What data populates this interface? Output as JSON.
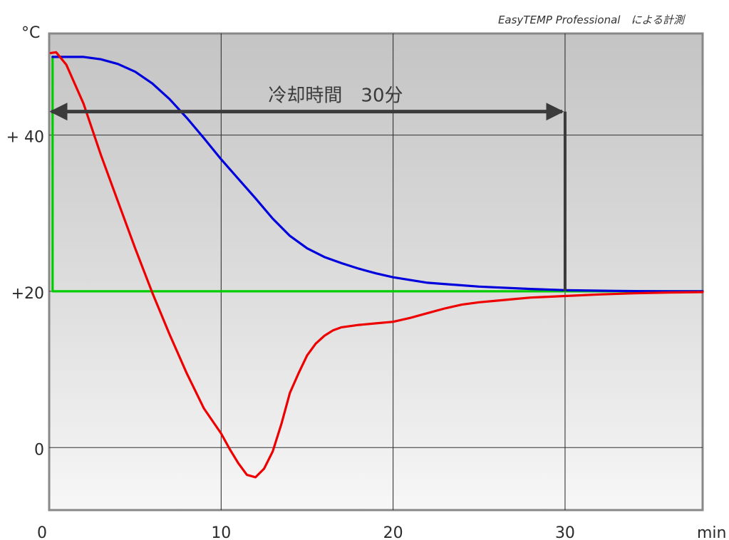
{
  "header_note": "EasyTEMP Professional　による計測",
  "chart_data": {
    "type": "line",
    "y_unit_label": "°C",
    "x_unit_label": "min",
    "xlim": [
      0,
      38
    ],
    "ylim": [
      -8,
      53
    ],
    "x_ticks": [
      {
        "value": 0,
        "label": "0"
      },
      {
        "value": 10,
        "label": "10"
      },
      {
        "value": 20,
        "label": "20"
      },
      {
        "value": 30,
        "label": "30"
      }
    ],
    "y_ticks": [
      {
        "value": 0,
        "label": "0"
      },
      {
        "value": 20,
        "label": "+20"
      },
      {
        "value": 40,
        "label": "+ 40"
      }
    ],
    "grid": true,
    "series": [
      {
        "color": "#0000dd",
        "points": [
          [
            0.2,
            50
          ],
          [
            2,
            50
          ],
          [
            3,
            49.7
          ],
          [
            4,
            49.1
          ],
          [
            5,
            48.1
          ],
          [
            6,
            46.6
          ],
          [
            7,
            44.6
          ],
          [
            8,
            42.2
          ],
          [
            9,
            39.6
          ],
          [
            10,
            36.9
          ],
          [
            11,
            34.4
          ],
          [
            12,
            31.9
          ],
          [
            13,
            29.3
          ],
          [
            14,
            27.1
          ],
          [
            15,
            25.5
          ],
          [
            16,
            24.4
          ],
          [
            17,
            23.6
          ],
          [
            18,
            22.9
          ],
          [
            19,
            22.3
          ],
          [
            20,
            21.8
          ],
          [
            22,
            21.1
          ],
          [
            25,
            20.6
          ],
          [
            28,
            20.3
          ],
          [
            30,
            20.15
          ],
          [
            33,
            20.05
          ],
          [
            36,
            20
          ],
          [
            38,
            20
          ]
        ]
      },
      {
        "color": "#ee0000",
        "points": [
          [
            0.1,
            50.5
          ],
          [
            0.4,
            50.6
          ],
          [
            1,
            49
          ],
          [
            2,
            44
          ],
          [
            3,
            37.5
          ],
          [
            4,
            31.5
          ],
          [
            5,
            25.5
          ],
          [
            6,
            19.8
          ],
          [
            7,
            14.5
          ],
          [
            8,
            9.5
          ],
          [
            9,
            5
          ],
          [
            10,
            1.8
          ],
          [
            10.5,
            -0.2
          ],
          [
            11,
            -2
          ],
          [
            11.5,
            -3.5
          ],
          [
            12,
            -3.8
          ],
          [
            12.5,
            -2.7
          ],
          [
            13,
            -0.5
          ],
          [
            13.5,
            3
          ],
          [
            14,
            7
          ],
          [
            14.5,
            9.5
          ],
          [
            15,
            11.8
          ],
          [
            15.5,
            13.3
          ],
          [
            16,
            14.3
          ],
          [
            16.5,
            15
          ],
          [
            17,
            15.4
          ],
          [
            18,
            15.7
          ],
          [
            19,
            15.9
          ],
          [
            20,
            16.1
          ],
          [
            21,
            16.6
          ],
          [
            22,
            17.2
          ],
          [
            23,
            17.8
          ],
          [
            24,
            18.3
          ],
          [
            25,
            18.6
          ],
          [
            26,
            18.8
          ],
          [
            27,
            19
          ],
          [
            28,
            19.2
          ],
          [
            29,
            19.3
          ],
          [
            30,
            19.4
          ],
          [
            32,
            19.6
          ],
          [
            34,
            19.75
          ],
          [
            36,
            19.85
          ],
          [
            38,
            19.9
          ]
        ]
      },
      {
        "color": "#00cc00",
        "points": [
          [
            0.2,
            50
          ],
          [
            0.2,
            20
          ],
          [
            38,
            20
          ]
        ]
      }
    ],
    "annotations": [
      {
        "type": "arrow",
        "x_from": 0,
        "x_to": 30,
        "y": 43,
        "label": "冷却時間　30分"
      },
      {
        "type": "vline",
        "x": 30,
        "y_from": 20,
        "y_to": 43
      }
    ]
  }
}
